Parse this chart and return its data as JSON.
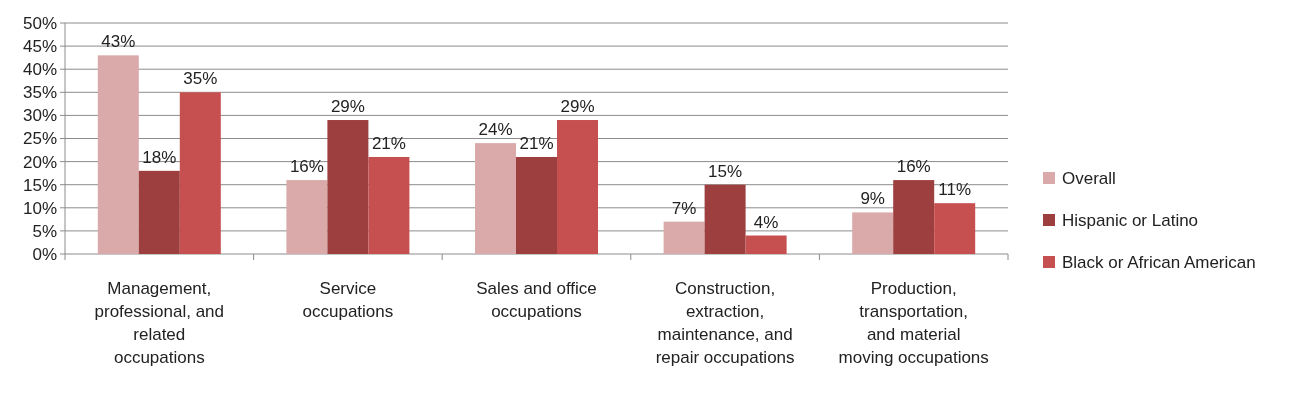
{
  "chart_data": {
    "type": "bar",
    "categories": [
      "Management, professional, and related occupations",
      "Service occupations",
      "Sales and office occupations",
      "Construction, extraction, maintenance, and repair occupations",
      "Production, transportation, and material moving occupations"
    ],
    "series": [
      {
        "name": "Overall",
        "color": "#d9aaa9",
        "values": [
          43,
          16,
          24,
          7,
          9
        ],
        "value_labels": [
          "43%",
          "16%",
          "24%",
          "7%",
          "9%"
        ]
      },
      {
        "name": "Hispanic or Latino",
        "color": "#9e3f3f",
        "values": [
          18,
          29,
          21,
          15,
          16
        ],
        "value_labels": [
          "18%",
          "29%",
          "21%",
          "15%",
          "16%"
        ]
      },
      {
        "name": "Black or African American",
        "color": "#c6504f",
        "values": [
          35,
          21,
          29,
          4,
          11
        ],
        "value_labels": [
          "35%",
          "21%",
          "29%",
          "4%",
          "11%"
        ]
      }
    ],
    "ylim": [
      0,
      50
    ],
    "yticks": [
      {
        "value": 0,
        "label": "0%"
      },
      {
        "value": 5,
        "label": "5%"
      },
      {
        "value": 10,
        "label": "10%"
      },
      {
        "value": 15,
        "label": "15%"
      },
      {
        "value": 20,
        "label": "20%"
      },
      {
        "value": 25,
        "label": "25%"
      },
      {
        "value": 30,
        "label": "30%"
      },
      {
        "value": 35,
        "label": "35%"
      },
      {
        "value": 40,
        "label": "40%"
      },
      {
        "value": 45,
        "label": "45%"
      },
      {
        "value": 50,
        "label": "50%"
      }
    ],
    "grid": "y",
    "legend": "right"
  }
}
